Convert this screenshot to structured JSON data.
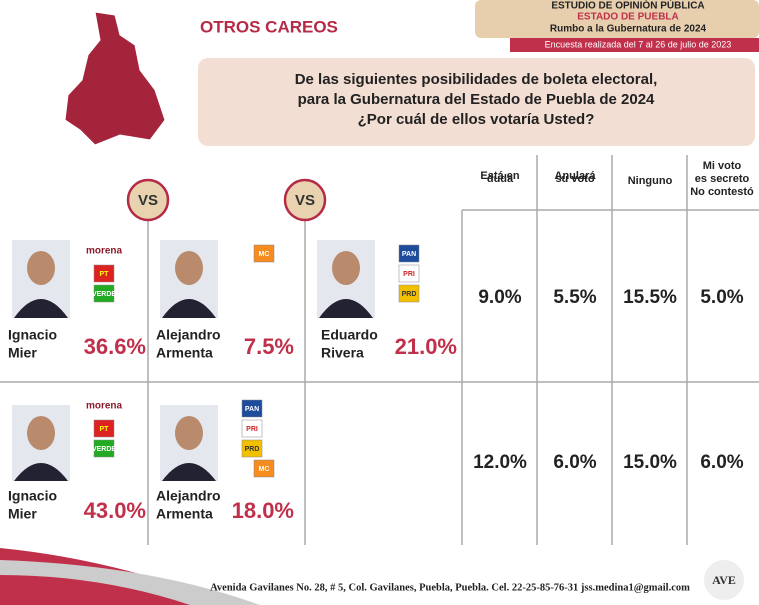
{
  "header": {
    "section_title": "OTROS CAREOS",
    "study": "ESTUDIO DE OPINIÓN PÚBLICA",
    "state": "ESTADO DE PUEBLA",
    "subtitle": "Rumbo a la Gubernatura de 2024",
    "dates": "Encuesta realizada del 7 al 26 de julio de 2023"
  },
  "question": [
    "De las siguientes posibilidades de boleta electoral,",
    "para la Gubernatura del Estado de Puebla de 2024",
    "¿Por cuál de ellos votaría Usted?"
  ],
  "vs_label": "VS",
  "columns": [
    [
      "Está en",
      "duda"
    ],
    [
      "Anulará",
      "su voto"
    ],
    [
      "Ninguno"
    ],
    [
      "Mi voto",
      "es secreto",
      "No contestó"
    ]
  ],
  "rows": [
    {
      "candidates": [
        {
          "name": [
            "Ignacio",
            "Mier"
          ],
          "parties": [
            "morena",
            "PT",
            "VERDE"
          ],
          "result": "36.6%"
        },
        {
          "name": [
            "Alejandro",
            "Armenta"
          ],
          "parties": [
            "MC"
          ],
          "result": "7.5%"
        },
        {
          "name": [
            "Eduardo",
            "Rivera"
          ],
          "parties": [
            "PAN",
            "PRI",
            "PRD"
          ],
          "result": "21.0%"
        }
      ],
      "other": [
        "9.0%",
        "5.5%",
        "15.5%",
        "5.0%"
      ]
    },
    {
      "candidates": [
        {
          "name": [
            "Ignacio",
            "Mier"
          ],
          "parties": [
            "morena",
            "PT",
            "VERDE"
          ],
          "result": "43.0%"
        },
        {
          "name": [
            "Alejandro",
            "Armenta"
          ],
          "parties": [
            "PAN",
            "PRI",
            "PRD",
            "MC"
          ],
          "result": "18.0%"
        }
      ],
      "other": [
        "12.0%",
        "6.0%",
        "15.0%",
        "6.0%"
      ]
    }
  ],
  "footer": {
    "address": "Avenida Gavilanes No. 28, # 5, Col. Gavilanes, Puebla, Puebla. Cel. 22-25-85-76-31  jss.medina1@gmail.com",
    "logo": "AVE"
  }
}
